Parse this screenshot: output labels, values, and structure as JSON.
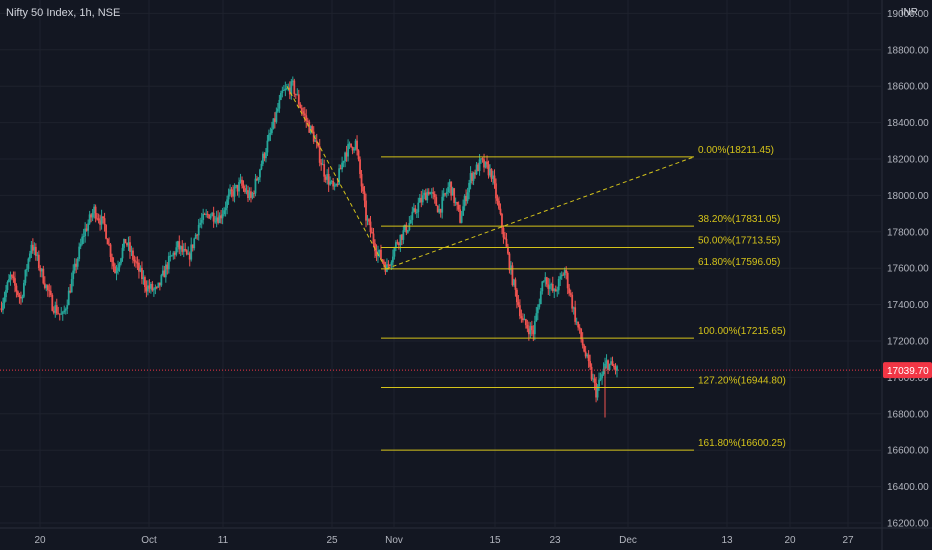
{
  "header": {
    "symbol": "Nifty 50 Index, 1h, NSE",
    "currency": "INR"
  },
  "colors": {
    "background": "#131722",
    "up": "#26a69a",
    "down": "#ef5350",
    "fib": "#d4c31a",
    "axis_text": "#b2b5be",
    "price_tag": "#f23645"
  },
  "chart_data": {
    "type": "candlestick",
    "ylim": [
      16200,
      19000
    ],
    "y_ticks": [
      "16200.00",
      "16400.00",
      "16600.00",
      "16800.00",
      "17000.00",
      "17200.00",
      "17400.00",
      "17600.00",
      "17800.00",
      "18000.00",
      "18200.00",
      "18400.00",
      "18600.00",
      "18800.00",
      "19000.00"
    ],
    "x_ticks": [
      "20",
      "Oct",
      "11",
      "25",
      "Nov",
      "15",
      "23",
      "Dec",
      "13",
      "20",
      "27"
    ],
    "current_price": "17039.70",
    "close_path": [
      [
        "Sep 16",
        17380
      ],
      [
        "Sep 17",
        17550
      ],
      [
        "Sep 20",
        17430
      ],
      [
        "Sep 21",
        17740
      ],
      [
        "Sep 22",
        17570
      ],
      [
        "Sep 23",
        17400
      ],
      [
        "Sep 24",
        17330
      ],
      [
        "Sep 27",
        17560
      ],
      [
        "Sep 28",
        17790
      ],
      [
        "Sep 29",
        17920
      ],
      [
        "Sep 30",
        17830
      ],
      [
        "Oct 1",
        17580
      ],
      [
        "Oct 4",
        17750
      ],
      [
        "Oct 5",
        17620
      ],
      [
        "Oct 6",
        17500
      ],
      [
        "Oct 7",
        17470
      ],
      [
        "Oct 8",
        17620
      ],
      [
        "Oct 11",
        17720
      ],
      [
        "Oct 12",
        17650
      ],
      [
        "Oct 13",
        17840
      ],
      [
        "Oct 14",
        17900
      ],
      [
        "Oct 15",
        17880
      ],
      [
        "Oct 18",
        18000
      ],
      [
        "Oct 19",
        18060
      ],
      [
        "Oct 20",
        17980
      ],
      [
        "Oct 21",
        18180
      ],
      [
        "Oct 22",
        18360
      ],
      [
        "Oct 25",
        18560
      ],
      [
        "Oct 26",
        18600
      ],
      [
        "Oct 27",
        18450
      ],
      [
        "Oct 28",
        18320
      ],
      [
        "Oct 29",
        18130
      ],
      [
        "Nov 1",
        18020
      ],
      [
        "Nov 2",
        18240
      ],
      [
        "Nov 3",
        18290
      ],
      [
        "Nov 4",
        17880
      ],
      [
        "Nov 5",
        17700
      ],
      [
        "Nov 8",
        17600
      ],
      [
        "Nov 9",
        17750
      ],
      [
        "Nov 10",
        17830
      ],
      [
        "Nov 11",
        17950
      ],
      [
        "Nov 12",
        18030
      ],
      [
        "Nov 15",
        17920
      ],
      [
        "Nov 16",
        18060
      ],
      [
        "Nov 17",
        17870
      ],
      [
        "Nov 18",
        18100
      ],
      [
        "Nov 19",
        18180
      ],
      [
        "Nov 22",
        18120
      ],
      [
        "Nov 23",
        17830
      ],
      [
        "Nov 24",
        17540
      ],
      [
        "Nov 25",
        17300
      ],
      [
        "Nov 26",
        17250
      ],
      [
        "Nov 29",
        17560
      ],
      [
        "Nov 30",
        17460
      ],
      [
        "Dec 1",
        17590
      ],
      [
        "Dec 2",
        17330
      ],
      [
        "Dec 3",
        17120
      ],
      [
        "Dec 6",
        16920
      ],
      [
        "Dec 7",
        17080
      ],
      [
        "Dec 8",
        17040
      ]
    ],
    "fib_levels": [
      {
        "label": "0.00%(18211.45)",
        "price": 18211.45
      },
      {
        "label": "38.20%(17831.05)",
        "price": 17831.05
      },
      {
        "label": "50.00%(17713.55)",
        "price": 17713.55
      },
      {
        "label": "61.80%(17596.05)",
        "price": 17596.05
      },
      {
        "label": "100.00%(17215.65)",
        "price": 17215.65
      },
      {
        "label": "127.20%(16944.80)",
        "price": 16944.8
      },
      {
        "label": "161.80%(16600.25)",
        "price": 16600.25
      }
    ]
  }
}
